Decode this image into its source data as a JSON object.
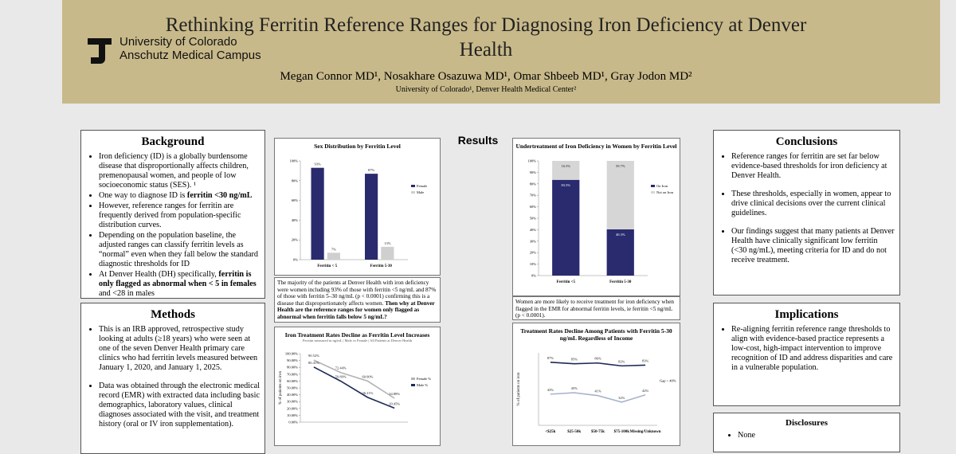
{
  "header": {
    "title": "Rethinking Ferritin Reference Ranges for Diagnosing Iron Deficiency at Denver Health",
    "authors": "Megan Connor MD¹, Nosakhare Osazuwa MD¹, Omar Shbeeb MD¹, Gray Jodon MD²",
    "affiliations": "University of Colorado¹, Denver Health Medical Center²",
    "logo": [
      "University of Colorado",
      "Anschutz Medical Campus"
    ]
  },
  "background": {
    "heading": "Background",
    "bullets": [
      [
        {
          "text": "Iron deficiency (ID) is a globally burdensome disease that disproportionally affects children, premenopausal women, and people of low socioeconomic status (SES). ¹"
        }
      ],
      [
        {
          "text": "One way to diagnose ID is "
        },
        {
          "text": "ferritin <30 ng/mL",
          "bold": true
        }
      ],
      [
        {
          "text": "However, reference ranges for ferritin are frequently derived from population-specific distribution curves."
        }
      ],
      [
        {
          "text": "Depending on the population baseline, the adjusted ranges can classify ferritin levels as “normal” even when they fall below the standard diagnostic thresholds for ID"
        }
      ],
      [
        {
          "text": "At Denver Health (DH) specifically, "
        },
        {
          "text": "ferritin is only flagged as abnormal when < 5 in females",
          "bold": true
        },
        {
          "text": " and <28 in males"
        }
      ]
    ]
  },
  "methods": {
    "heading": "Methods",
    "bullets": [
      [
        {
          "text": "This is an IRB approved, retrospective study looking at adults (≥18 years) who were seen at one of the seven Denver Health primary care clinics who had ferritin levels measured between January 1, 2020, and January 1, 2025."
        }
      ],
      [
        {
          "text": "Data was obtained through the electronic medical record (EMR) with extracted data including basic demographics, laboratory values, clinical diagnoses associated with the visit, and treatment history (oral or IV iron supplementation)."
        }
      ]
    ]
  },
  "results": {
    "heading": "Results"
  },
  "conclusions": {
    "heading": "Conclusions",
    "bullets": [
      [
        {
          "text": "Reference ranges for ferritin are set far below evidence-based thresholds for iron deficiency at Denver Health."
        }
      ],
      [
        {
          "text": "These thresholds, especially in women, appear to drive clinical decisions over the current clinical guidelines."
        }
      ],
      [
        {
          "text": "Our findings suggest that many patients at Denver Health have clinically significant low ferritin (<30 ng/mL), meeting criteria for ID and do not receive treatment."
        }
      ]
    ]
  },
  "implications": {
    "heading": "Implications",
    "bullets": [
      [
        {
          "text": "Re-aligning ferritin reference range thresholds to align with evidence-based practice represents a low-cost, high-impact intervention to improve recognition of ID and address disparities and care in a vulnerable population."
        }
      ]
    ]
  },
  "disclosures": {
    "heading": "Disclosures",
    "bullets": [
      [
        {
          "text": "None"
        }
      ]
    ]
  },
  "captions": [
    [
      {
        "text": "The majority of the patients at Denver Health with iron deficiency were women including 93% of those with ferritin <5 ng/mL and 87% of those with ferritin 5–30 ng/mL (p < 0.0001) confirming this is a disease that disproportionately affects women. "
      },
      {
        "text": "Then why at Denver Health are the reference ranges for women only flagged as abnormal when ferritin falls below 5 ng/mL?",
        "bold": true
      }
    ],
    [
      {
        "text": "Women are more likely to receive treatment for iron deficiency when flagged in the EMR for abnormal ferritin levels, ie ferritin <5 ng/mL (p < 0.0001)."
      }
    ]
  ],
  "charts": [
    {
      "type": "bar",
      "title": "Sex Distribution by Ferritin Level",
      "categories": [
        "Ferritin < 5",
        "Ferritin 5-30"
      ],
      "series": [
        {
          "name": "Female",
          "color": "#2a2a6e",
          "values": [
            93,
            87
          ],
          "value_labels": [
            "93%",
            "87%"
          ]
        },
        {
          "name": "Male",
          "color": "#cfcfcf",
          "values": [
            7,
            13
          ],
          "value_labels": [
            "7%",
            "13%"
          ]
        }
      ],
      "ylim": [
        0,
        100
      ],
      "yticks": [
        {
          "value": 0,
          "label": "0%"
        },
        {
          "value": 20,
          "label": "20%"
        },
        {
          "value": 40,
          "label": "40%"
        },
        {
          "value": 60,
          "label": "60%"
        },
        {
          "value": 80,
          "label": "80%"
        },
        {
          "value": 100,
          "label": "100%"
        }
      ]
    },
    {
      "type": "stacked_bar",
      "title": "Undertreatment of Iron Deficiency in Women by Ferritin Level",
      "categories": [
        "Ferritin <5",
        "Ferritin 5-30"
      ],
      "series": [
        {
          "name": "On Iron",
          "color": "#2a2a6e",
          "values": [
            83.5,
            40.3
          ],
          "value_labels": [
            "83.5%",
            "40.3%"
          ]
        },
        {
          "name": "Not on Iron",
          "color": "#d6d6d6",
          "values": [
            16.5,
            59.7
          ],
          "value_labels": [
            "16.5%",
            "59.7%"
          ]
        }
      ],
      "ylim": [
        0,
        100
      ],
      "yticks": [
        {
          "value": 0,
          "label": "0%"
        },
        {
          "value": 10,
          "label": "10%"
        },
        {
          "value": 20,
          "label": "20%"
        },
        {
          "value": 30,
          "label": "30%"
        },
        {
          "value": 40,
          "label": "40%"
        },
        {
          "value": 50,
          "label": "50%"
        },
        {
          "value": 60,
          "label": "60%"
        },
        {
          "value": 70,
          "label": "70%"
        },
        {
          "value": 80,
          "label": "80%"
        },
        {
          "value": 90,
          "label": "90%"
        },
        {
          "value": 100,
          "label": "100%"
        }
      ]
    },
    {
      "type": "line",
      "title": "Iron Treatment Rates Decline as Ferritin Level Increases",
      "subtitle": "Ferritin measured in ng/mL | Male vs Female | All Patients at Denver Health",
      "y_label": "% of patients on iron",
      "categories": [
        null,
        null,
        null,
        null
      ],
      "series": [
        {
          "name": "Female %",
          "color": "#b3b3b3",
          "values": [
            90.52,
            72.44,
            60.0,
            34.88
          ],
          "value_labels": [
            "90.52%",
            "72.44%",
            "60.00%",
            "34.88%"
          ]
        },
        {
          "name": "Male %",
          "color": "#1f2a55",
          "values": [
            80.41,
            59.89,
            36.21,
            20.45
          ],
          "value_labels": [
            "80.41%",
            "59.89%",
            "36.21%",
            "20.45%"
          ]
        }
      ],
      "ylim": [
        0,
        100
      ],
      "yticks": [
        {
          "value": 0,
          "label": "0.00%"
        },
        {
          "value": 10,
          "label": "10.00%"
        },
        {
          "value": 20,
          "label": "20.00%"
        },
        {
          "value": 30,
          "label": "30.00%"
        },
        {
          "value": 40,
          "label": "40.00%"
        },
        {
          "value": 50,
          "label": "50.00%"
        },
        {
          "value": 60,
          "label": "60.00%"
        },
        {
          "value": 70,
          "label": "70.00%"
        },
        {
          "value": 80,
          "label": "80.00%"
        },
        {
          "value": 90,
          "label": "90.00%"
        },
        {
          "value": 100,
          "label": "100.00%"
        }
      ]
    },
    {
      "type": "line",
      "title": "Treatment Rates Decline Among Patients with Ferritin 5-30 ng/mL Regardless of Income",
      "y_label": "% of patients on iron",
      "annotation": "Gap > 40%",
      "categories": [
        "<$25k",
        "$25-50k",
        "$50-75k",
        "$75-100k",
        "Missing/Unknown"
      ],
      "series": [
        {
          "color": "#1f2a55",
          "values": [
            87,
            85,
            86,
            82,
            83
          ],
          "value_labels": [
            "87%",
            "85%",
            "86%",
            "82%",
            "83%"
          ]
        },
        {
          "color": "#a8b4cc",
          "values": [
            43,
            45,
            41,
            32,
            42
          ],
          "value_labels": [
            "43%",
            "45%",
            "41%",
            "32%",
            "42%"
          ]
        }
      ],
      "ylim": [
        0,
        100
      ]
    }
  ]
}
